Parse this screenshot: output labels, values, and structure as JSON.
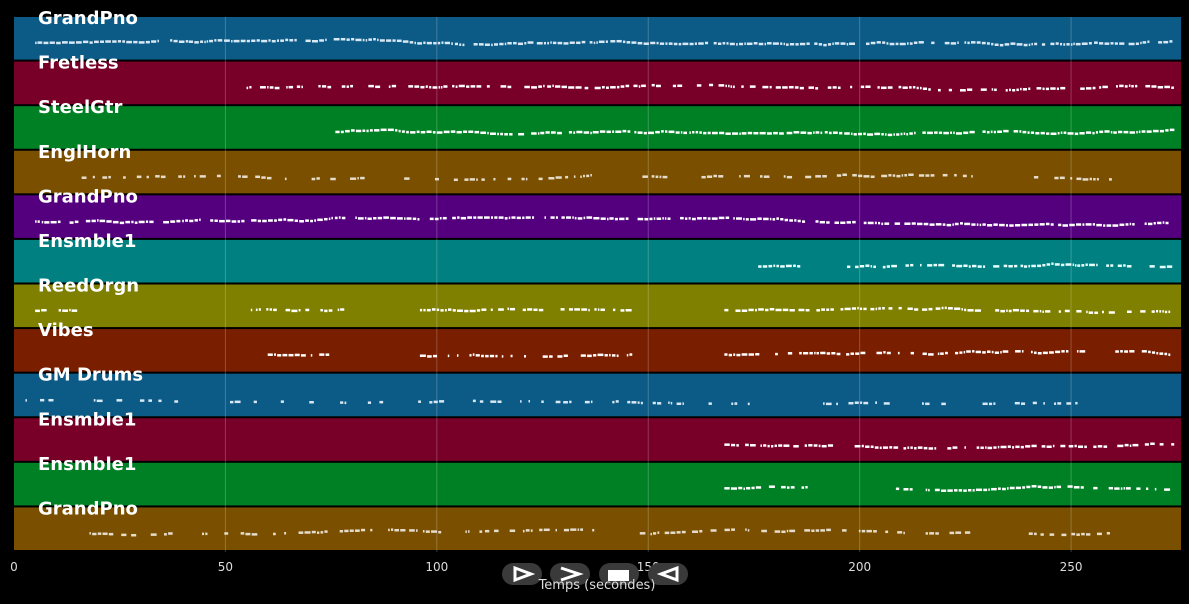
{
  "chart_data": {
    "type": "piano-roll",
    "xlabel": "Temps (secondes)",
    "xlim": [
      0,
      276
    ],
    "xticks": [
      0,
      50,
      100,
      150,
      200,
      250
    ],
    "grid": true,
    "tracks": [
      {
        "name": "GrandPno",
        "color": "#0c5a86",
        "note_color": "#d8e8f4",
        "active": [
          [
            5,
            274
          ]
        ],
        "density": 1.0
      },
      {
        "name": "Fretless",
        "color": "#780028",
        "note_color": "#ffffff",
        "active": [
          [
            55,
            274
          ]
        ],
        "density": 0.8
      },
      {
        "name": "SteelGtr",
        "color": "#008024",
        "note_color": "#ffffff",
        "active": [
          [
            76,
            274
          ]
        ],
        "density": 1.0
      },
      {
        "name": "EnglHorn",
        "color": "#7a5000",
        "note_color": "#e6dccb",
        "active": [
          [
            16,
            137
          ],
          [
            148,
            229
          ],
          [
            240,
            260
          ]
        ],
        "density": 0.55
      },
      {
        "name": "GrandPno",
        "color": "#54007e",
        "note_color": "#ffffff",
        "active": [
          [
            5,
            274
          ]
        ],
        "density": 1.0
      },
      {
        "name": "Ensmble1",
        "color": "#008080",
        "note_color": "#e8ffff",
        "active": [
          [
            176,
            188
          ],
          [
            197,
            274
          ]
        ],
        "density": 0.8
      },
      {
        "name": "ReedOrgn",
        "color": "#7f7f00",
        "note_color": "#ffffff",
        "active": [
          [
            5,
            15
          ],
          [
            56,
            78
          ],
          [
            96,
            146
          ],
          [
            168,
            274
          ]
        ],
        "density": 0.8
      },
      {
        "name": "Vibes",
        "color": "#7a1e00",
        "note_color": "#ffffff",
        "active": [
          [
            60,
            75
          ],
          [
            96,
            146
          ],
          [
            168,
            274
          ]
        ],
        "density": 0.7
      },
      {
        "name": "GM Drums",
        "color": "#0c5a86",
        "note_color": "#d8e8f4",
        "active": [
          [
            2,
            258
          ]
        ],
        "density": 0.35
      },
      {
        "name": "Ensmble1",
        "color": "#780028",
        "note_color": "#ffffff",
        "active": [
          [
            168,
            274
          ]
        ],
        "density": 0.8
      },
      {
        "name": "Ensmble1",
        "color": "#008024",
        "note_color": "#ffffff",
        "active": [
          [
            168,
            188
          ],
          [
            208,
            274
          ]
        ],
        "density": 0.8
      },
      {
        "name": "GrandPno",
        "color": "#7a5000",
        "note_color": "#e6dccb",
        "active": [
          [
            16,
            137
          ],
          [
            148,
            229
          ],
          [
            240,
            260
          ]
        ],
        "density": 0.55
      }
    ]
  },
  "transport": {
    "buttons": [
      {
        "name": "play-button",
        "icon": "play-icon"
      },
      {
        "name": "fast-forward-button",
        "icon": "fast-forward-icon"
      },
      {
        "name": "stop-button",
        "icon": "stop-icon"
      },
      {
        "name": "rewind-button",
        "icon": "rewind-icon"
      }
    ]
  },
  "colors": {
    "background": "#000000",
    "grid": "#ffffff",
    "text": "#ffffff"
  }
}
